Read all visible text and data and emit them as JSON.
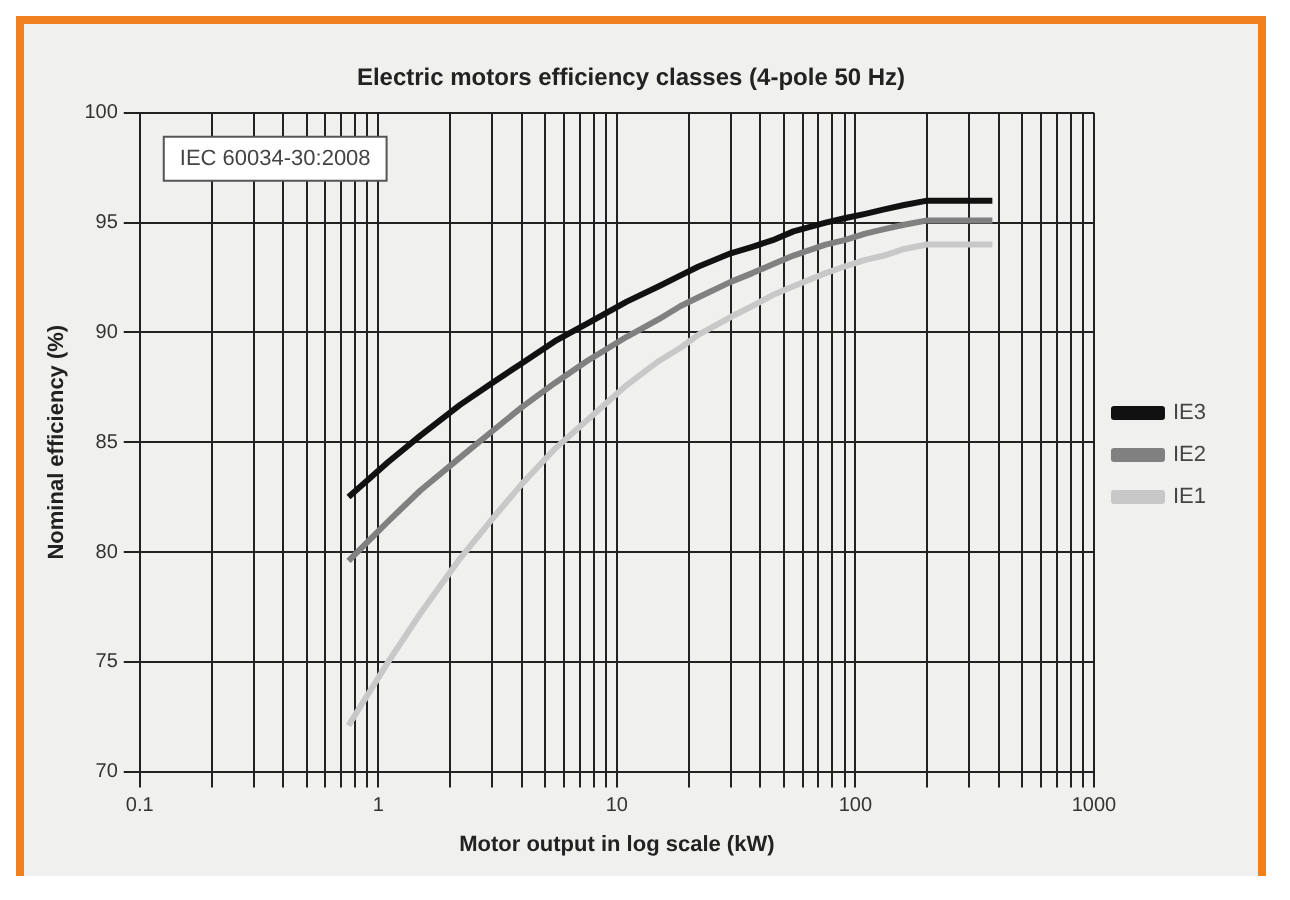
{
  "chart_data": {
    "type": "line",
    "title": "Electric motors efficiency classes (4-pole 50 Hz)",
    "xlabel": "Motor output in log scale (kW)",
    "ylabel": "Nominal efficiency (%)",
    "annotations": [
      "IEC 60034-30:2008"
    ],
    "x": [
      0.75,
      1.1,
      1.5,
      2.2,
      3,
      4,
      5.5,
      7.5,
      11,
      15,
      18.5,
      22,
      30,
      37,
      45,
      55,
      75,
      90,
      110,
      132,
      160,
      200,
      375
    ],
    "series": [
      {
        "name": "IE3",
        "color": "#111111",
        "values": [
          82.5,
          84.1,
          85.3,
          86.7,
          87.7,
          88.6,
          89.6,
          90.4,
          91.4,
          92.1,
          92.6,
          93.0,
          93.6,
          93.9,
          94.2,
          94.6,
          95.0,
          95.2,
          95.4,
          95.6,
          95.8,
          96.0,
          96.0
        ]
      },
      {
        "name": "IE2",
        "color": "#808080",
        "values": [
          79.6,
          81.4,
          82.8,
          84.3,
          85.5,
          86.6,
          87.7,
          88.7,
          89.8,
          90.6,
          91.2,
          91.6,
          92.3,
          92.7,
          93.1,
          93.5,
          94.0,
          94.2,
          94.5,
          94.7,
          94.9,
          95.1,
          95.1
        ]
      },
      {
        "name": "IE1",
        "color": "#c8c8c8",
        "values": [
          72.1,
          75.0,
          77.2,
          79.7,
          81.5,
          83.1,
          84.7,
          86.0,
          87.6,
          88.7,
          89.3,
          89.9,
          90.7,
          91.2,
          91.7,
          92.1,
          92.7,
          93.0,
          93.3,
          93.5,
          93.8,
          94.0,
          94.0
        ]
      }
    ],
    "log": "x",
    "xlim": [
      0.1,
      1000
    ],
    "xticks": [
      0.1,
      {
        "value": 0.2,
        "label": null
      },
      {
        "value": 0.3,
        "label": null
      },
      {
        "value": 0.4,
        "label": null
      },
      {
        "value": 0.5,
        "label": null
      },
      {
        "value": 0.6,
        "label": null
      },
      {
        "value": 0.7,
        "label": null
      },
      {
        "value": 0.8,
        "label": null
      },
      {
        "value": 0.9,
        "label": null
      },
      1,
      {
        "value": 2,
        "label": null
      },
      {
        "value": 3,
        "label": null
      },
      {
        "value": 4,
        "label": null
      },
      {
        "value": 5,
        "label": null
      },
      {
        "value": 6,
        "label": null
      },
      {
        "value": 7,
        "label": null
      },
      {
        "value": 8,
        "label": null
      },
      {
        "value": 9,
        "label": null
      },
      10,
      {
        "value": 20,
        "label": null
      },
      {
        "value": 30,
        "label": null
      },
      {
        "value": 40,
        "label": null
      },
      {
        "value": 50,
        "label": null
      },
      {
        "value": 60,
        "label": null
      },
      {
        "value": 70,
        "label": null
      },
      {
        "value": 80,
        "label": null
      },
      {
        "value": 90,
        "label": null
      },
      100,
      {
        "value": 200,
        "label": null
      },
      {
        "value": 300,
        "label": null
      },
      {
        "value": 400,
        "label": null
      },
      {
        "value": 500,
        "label": null
      },
      {
        "value": 600,
        "label": null
      },
      {
        "value": 700,
        "label": null
      },
      {
        "value": 800,
        "label": null
      },
      {
        "value": 900,
        "label": null
      },
      1000
    ],
    "ylim": [
      70,
      100
    ],
    "yticks": [
      70,
      75,
      80,
      85,
      90,
      95,
      100
    ],
    "grid": true,
    "legend": "right",
    "marker": "none",
    "line_style": "solid"
  }
}
